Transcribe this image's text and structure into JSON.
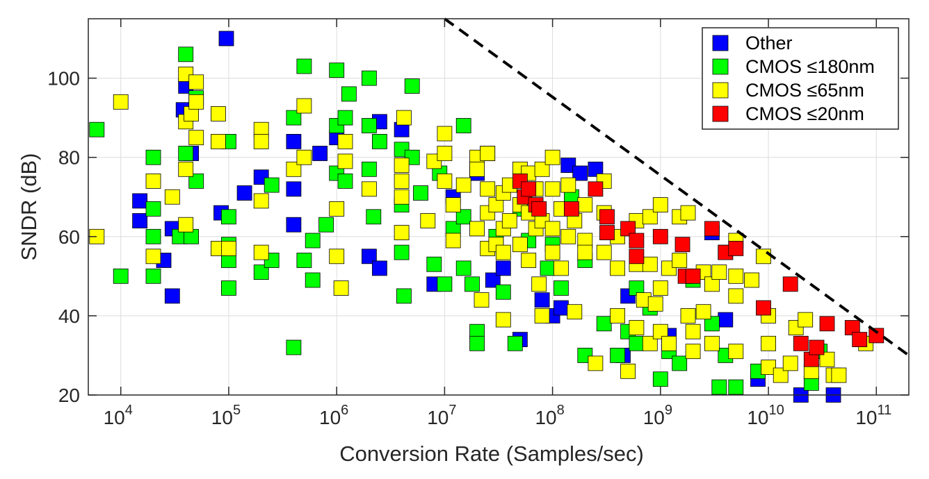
{
  "chart_data": {
    "type": "scatter",
    "title": "",
    "xlabel": "Conversion Rate (Samples/sec)",
    "ylabel": "SNDR (dB)",
    "xscale": "log",
    "xlim": [
      5000,
      200000000000
    ],
    "ylim": [
      20,
      115
    ],
    "grid": true,
    "legend_position": "top-right",
    "x_ticks": [
      {
        "value": 10000,
        "base": "10",
        "exp": "4"
      },
      {
        "value": 100000,
        "base": "10",
        "exp": "5"
      },
      {
        "value": 1000000,
        "base": "10",
        "exp": "6"
      },
      {
        "value": 10000000,
        "base": "10",
        "exp": "7"
      },
      {
        "value": 100000000,
        "base": "10",
        "exp": "8"
      },
      {
        "value": 1000000000,
        "base": "10",
        "exp": "9"
      },
      {
        "value": 10000000000,
        "base": "10",
        "exp": "10"
      },
      {
        "value": 100000000000,
        "base": "10",
        "exp": "11"
      }
    ],
    "y_ticks": [
      20,
      40,
      60,
      80,
      100
    ],
    "boundary_line": {
      "style": "dashed",
      "color": "#000000",
      "points": [
        [
          10000000,
          115
        ],
        [
          200000000000,
          30
        ]
      ]
    },
    "series": [
      {
        "name": "Other",
        "color": "#0000ff",
        "points": [
          [
            15000,
            69
          ],
          [
            15000,
            64
          ],
          [
            25000,
            54
          ],
          [
            30000,
            45
          ],
          [
            30000,
            62
          ],
          [
            38000,
            92
          ],
          [
            40000,
            98
          ],
          [
            45000,
            81
          ],
          [
            85000,
            66
          ],
          [
            95000,
            110
          ],
          [
            140000,
            71
          ],
          [
            200000,
            75
          ],
          [
            400000,
            84
          ],
          [
            400000,
            72
          ],
          [
            400000,
            63
          ],
          [
            700000,
            81
          ],
          [
            1000000,
            85
          ],
          [
            2000000,
            55
          ],
          [
            2500000,
            52
          ],
          [
            2500000,
            89
          ],
          [
            4000000,
            87
          ],
          [
            8000000,
            48
          ],
          [
            12000000,
            70
          ],
          [
            20000000,
            76
          ],
          [
            28000000,
            49
          ],
          [
            35000000,
            52
          ],
          [
            50000000,
            34
          ],
          [
            80000000,
            44
          ],
          [
            100000000,
            40
          ],
          [
            120000000,
            42
          ],
          [
            140000000,
            78
          ],
          [
            180000000,
            76
          ],
          [
            250000000,
            77
          ],
          [
            450000000,
            30
          ],
          [
            500000000,
            45
          ],
          [
            1200000000,
            35
          ],
          [
            3000000000,
            61
          ],
          [
            4000000000,
            39
          ],
          [
            8000000000,
            24
          ],
          [
            20000000000,
            20
          ],
          [
            40000000000,
            20
          ]
        ]
      },
      {
        "name": "CMOS ≤180nm",
        "color": "#00ff00",
        "points": [
          [
            6000,
            87
          ],
          [
            10000,
            50
          ],
          [
            20000,
            80
          ],
          [
            20000,
            67
          ],
          [
            20000,
            60
          ],
          [
            20000,
            50
          ],
          [
            35000,
            60
          ],
          [
            40000,
            106
          ],
          [
            40000,
            81
          ],
          [
            45000,
            60
          ],
          [
            50000,
            74
          ],
          [
            50000,
            95
          ],
          [
            100000,
            84
          ],
          [
            100000,
            65
          ],
          [
            100000,
            58
          ],
          [
            100000,
            54
          ],
          [
            100000,
            47
          ],
          [
            200000,
            51
          ],
          [
            250000,
            54
          ],
          [
            250000,
            73
          ],
          [
            400000,
            90
          ],
          [
            400000,
            32
          ],
          [
            500000,
            103
          ],
          [
            500000,
            54
          ],
          [
            600000,
            59
          ],
          [
            600000,
            49
          ],
          [
            800000,
            63
          ],
          [
            1000000,
            102
          ],
          [
            1000000,
            88
          ],
          [
            1000000,
            76
          ],
          [
            1200000,
            90
          ],
          [
            1200000,
            74
          ],
          [
            1300000,
            96
          ],
          [
            2000000,
            100
          ],
          [
            2000000,
            88
          ],
          [
            2000000,
            77
          ],
          [
            2200000,
            65
          ],
          [
            2500000,
            84
          ],
          [
            4000000,
            82
          ],
          [
            4000000,
            68
          ],
          [
            4000000,
            56
          ],
          [
            4200000,
            45
          ],
          [
            5000000,
            98
          ],
          [
            5000000,
            80
          ],
          [
            6000000,
            71
          ],
          [
            8000000,
            53
          ],
          [
            9000000,
            76
          ],
          [
            10000000,
            48
          ],
          [
            12000000,
            62
          ],
          [
            15000000,
            88
          ],
          [
            15000000,
            65
          ],
          [
            15000000,
            52
          ],
          [
            18000000,
            48
          ],
          [
            20000000,
            36
          ],
          [
            20000000,
            33
          ],
          [
            25000000,
            81
          ],
          [
            30000000,
            60
          ],
          [
            35000000,
            46
          ],
          [
            45000000,
            33
          ],
          [
            50000000,
            67
          ],
          [
            60000000,
            59
          ],
          [
            70000000,
            72
          ],
          [
            90000000,
            52
          ],
          [
            100000000,
            58
          ],
          [
            120000000,
            47
          ],
          [
            150000000,
            70
          ],
          [
            200000000,
            54
          ],
          [
            200000000,
            30
          ],
          [
            300000000,
            38
          ],
          [
            400000000,
            30
          ],
          [
            500000000,
            36
          ],
          [
            600000000,
            47
          ],
          [
            600000000,
            33
          ],
          [
            800000000,
            42
          ],
          [
            1000000000,
            24
          ],
          [
            1200000000,
            31
          ],
          [
            1500000000,
            28
          ],
          [
            2000000000,
            49
          ],
          [
            3000000000,
            38
          ],
          [
            3500000000,
            22
          ],
          [
            4000000000,
            30
          ],
          [
            5000000000,
            22
          ],
          [
            8000000000,
            26
          ],
          [
            25000000000,
            23
          ],
          [
            30000000000,
            31
          ]
        ]
      },
      {
        "name": "CMOS ≤65nm",
        "color": "#ffff00",
        "points": [
          [
            6000,
            60
          ],
          [
            10000,
            94
          ],
          [
            20000,
            74
          ],
          [
            20000,
            55
          ],
          [
            30000,
            70
          ],
          [
            40000,
            101
          ],
          [
            40000,
            89
          ],
          [
            40000,
            77
          ],
          [
            40000,
            63
          ],
          [
            45000,
            91
          ],
          [
            50000,
            99
          ],
          [
            50000,
            94
          ],
          [
            50000,
            85
          ],
          [
            80000,
            91
          ],
          [
            80000,
            84
          ],
          [
            80000,
            57
          ],
          [
            100000,
            57
          ],
          [
            200000,
            87
          ],
          [
            200000,
            84
          ],
          [
            200000,
            69
          ],
          [
            200000,
            56
          ],
          [
            400000,
            77
          ],
          [
            500000,
            93
          ],
          [
            500000,
            80
          ],
          [
            1000000,
            67
          ],
          [
            1000000,
            55
          ],
          [
            1100000,
            47
          ],
          [
            1200000,
            84
          ],
          [
            1200000,
            79
          ],
          [
            2000000,
            72
          ],
          [
            4000000,
            78
          ],
          [
            4000000,
            74
          ],
          [
            4000000,
            70
          ],
          [
            4000000,
            61
          ],
          [
            4200000,
            90
          ],
          [
            7000000,
            64
          ],
          [
            8000000,
            79
          ],
          [
            10000000,
            86
          ],
          [
            10000000,
            81
          ],
          [
            10000000,
            74
          ],
          [
            12000000,
            68
          ],
          [
            12000000,
            59
          ],
          [
            15000000,
            73
          ],
          [
            20000000,
            80
          ],
          [
            20000000,
            77
          ],
          [
            20000000,
            62
          ],
          [
            22000000,
            44
          ],
          [
            25000000,
            81
          ],
          [
            25000000,
            72
          ],
          [
            25000000,
            66
          ],
          [
            25000000,
            57
          ],
          [
            30000000,
            68
          ],
          [
            30000000,
            58
          ],
          [
            35000000,
            71
          ],
          [
            35000000,
            62
          ],
          [
            35000000,
            56
          ],
          [
            35000000,
            39
          ],
          [
            40000000,
            73
          ],
          [
            40000000,
            64
          ],
          [
            50000000,
            77
          ],
          [
            50000000,
            68
          ],
          [
            50000000,
            58
          ],
          [
            60000000,
            76
          ],
          [
            60000000,
            66
          ],
          [
            60000000,
            54
          ],
          [
            70000000,
            72
          ],
          [
            70000000,
            62
          ],
          [
            75000000,
            48
          ],
          [
            80000000,
            77
          ],
          [
            80000000,
            64
          ],
          [
            80000000,
            40
          ],
          [
            100000000,
            80
          ],
          [
            100000000,
            72
          ],
          [
            100000000,
            62
          ],
          [
            100000000,
            56
          ],
          [
            120000000,
            67
          ],
          [
            120000000,
            52
          ],
          [
            140000000,
            73
          ],
          [
            140000000,
            60
          ],
          [
            160000000,
            64
          ],
          [
            160000000,
            41
          ],
          [
            200000000,
            68
          ],
          [
            200000000,
            59
          ],
          [
            200000000,
            56
          ],
          [
            250000000,
            28
          ],
          [
            300000000,
            74
          ],
          [
            300000000,
            66
          ],
          [
            300000000,
            56
          ],
          [
            400000000,
            60
          ],
          [
            400000000,
            52
          ],
          [
            400000000,
            40
          ],
          [
            500000000,
            26
          ],
          [
            600000000,
            64
          ],
          [
            600000000,
            53
          ],
          [
            600000000,
            37
          ],
          [
            700000000,
            44
          ],
          [
            800000000,
            65
          ],
          [
            800000000,
            53
          ],
          [
            800000000,
            33
          ],
          [
            900000000,
            43
          ],
          [
            1000000000,
            68
          ],
          [
            1000000000,
            47
          ],
          [
            1000000000,
            36
          ],
          [
            1200000000,
            52
          ],
          [
            1200000000,
            33
          ],
          [
            1500000000,
            65
          ],
          [
            1500000000,
            54
          ],
          [
            1800000000,
            66
          ],
          [
            1800000000,
            40
          ],
          [
            2000000000,
            36
          ],
          [
            2000000000,
            31
          ],
          [
            2500000000,
            41
          ],
          [
            2500000000,
            51
          ],
          [
            3000000000,
            48
          ],
          [
            3000000000,
            33
          ],
          [
            3500000000,
            51
          ],
          [
            4000000000,
            56
          ],
          [
            5000000000,
            59
          ],
          [
            5000000000,
            50
          ],
          [
            5000000000,
            45
          ],
          [
            5000000000,
            31
          ],
          [
            7000000000,
            49
          ],
          [
            9000000000,
            55
          ],
          [
            10000000000,
            40
          ],
          [
            10000000000,
            33
          ],
          [
            10000000000,
            27
          ],
          [
            13000000000,
            25
          ],
          [
            16000000000,
            28
          ],
          [
            18000000000,
            37
          ],
          [
            22000000000,
            39
          ],
          [
            25000000000,
            26
          ],
          [
            35000000000,
            29
          ],
          [
            40000000000,
            25
          ],
          [
            45000000000,
            25
          ],
          [
            80000000000,
            33
          ]
        ]
      },
      {
        "name": "CMOS ≤20nm",
        "color": "#ff0000",
        "points": [
          [
            50000000,
            74
          ],
          [
            55000000,
            70
          ],
          [
            60000000,
            72
          ],
          [
            70000000,
            68
          ],
          [
            75000000,
            67
          ],
          [
            150000000,
            67
          ],
          [
            250000000,
            72
          ],
          [
            320000000,
            65
          ],
          [
            320000000,
            61
          ],
          [
            500000000,
            62
          ],
          [
            600000000,
            59
          ],
          [
            600000000,
            55
          ],
          [
            1000000000,
            60
          ],
          [
            1600000000,
            58
          ],
          [
            1700000000,
            50
          ],
          [
            2000000000,
            50
          ],
          [
            3000000000,
            62
          ],
          [
            4000000000,
            56
          ],
          [
            5000000000,
            57
          ],
          [
            9000000000,
            42
          ],
          [
            16000000000,
            48
          ],
          [
            20000000000,
            33
          ],
          [
            25000000000,
            29
          ],
          [
            28000000000,
            32
          ],
          [
            35000000000,
            38
          ],
          [
            60000000000,
            37
          ],
          [
            70000000000,
            34
          ],
          [
            100000000000,
            35
          ]
        ]
      }
    ]
  }
}
